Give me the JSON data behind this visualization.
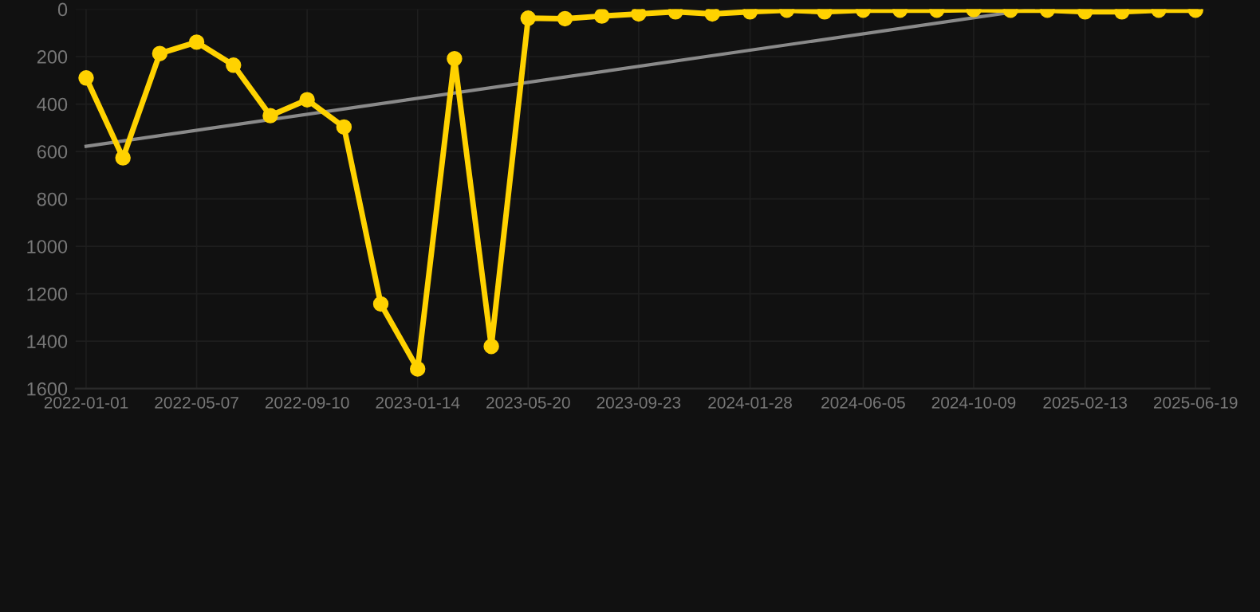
{
  "chart_data": {
    "type": "line",
    "ylim": [
      1600,
      0
    ],
    "yticks": [
      0,
      200,
      400,
      600,
      800,
      1000,
      1200,
      1400,
      1600
    ],
    "xlim": [
      "2021-12-20",
      "2025-07-05"
    ],
    "xticks": [
      "2022-01-01",
      "2022-05-07",
      "2022-09-10",
      "2023-01-14",
      "2023-05-20",
      "2023-09-23",
      "2024-01-28",
      "2024-06-05",
      "2024-10-09",
      "2025-02-13",
      "2025-06-19"
    ],
    "grid": true,
    "marker": "circle",
    "line_style": "solid",
    "series": [
      {
        "color": "#ffd200",
        "x": [
          "2022-01-01",
          "2022-02-12",
          "2022-03-26",
          "2022-05-07",
          "2022-06-18",
          "2022-07-30",
          "2022-09-10",
          "2022-10-22",
          "2022-12-03",
          "2023-01-14",
          "2023-02-25",
          "2023-04-08",
          "2023-05-20",
          "2023-07-01",
          "2023-08-12",
          "2023-09-23",
          "2023-11-04",
          "2023-12-16",
          "2024-01-28",
          "2024-03-10",
          "2024-04-22",
          "2024-06-05",
          "2024-07-17",
          "2024-08-28",
          "2024-10-09",
          "2024-11-20",
          "2025-01-01",
          "2025-02-13",
          "2025-03-27",
          "2025-05-08",
          "2025-06-19"
        ],
        "values": [
          290,
          627,
          187,
          139,
          236,
          449,
          382,
          497,
          1243,
          1517,
          209,
          1422,
          38,
          40,
          29,
          20,
          11,
          20,
          11,
          4,
          11,
          4,
          4,
          4,
          2,
          4,
          4,
          11,
          11,
          4,
          4
        ]
      },
      {
        "type": "line",
        "color": "#8a8a8a",
        "marker": "none",
        "x": [
          "2022-01-01",
          "2024-12-16"
        ],
        "values": [
          578,
          0
        ]
      }
    ]
  }
}
